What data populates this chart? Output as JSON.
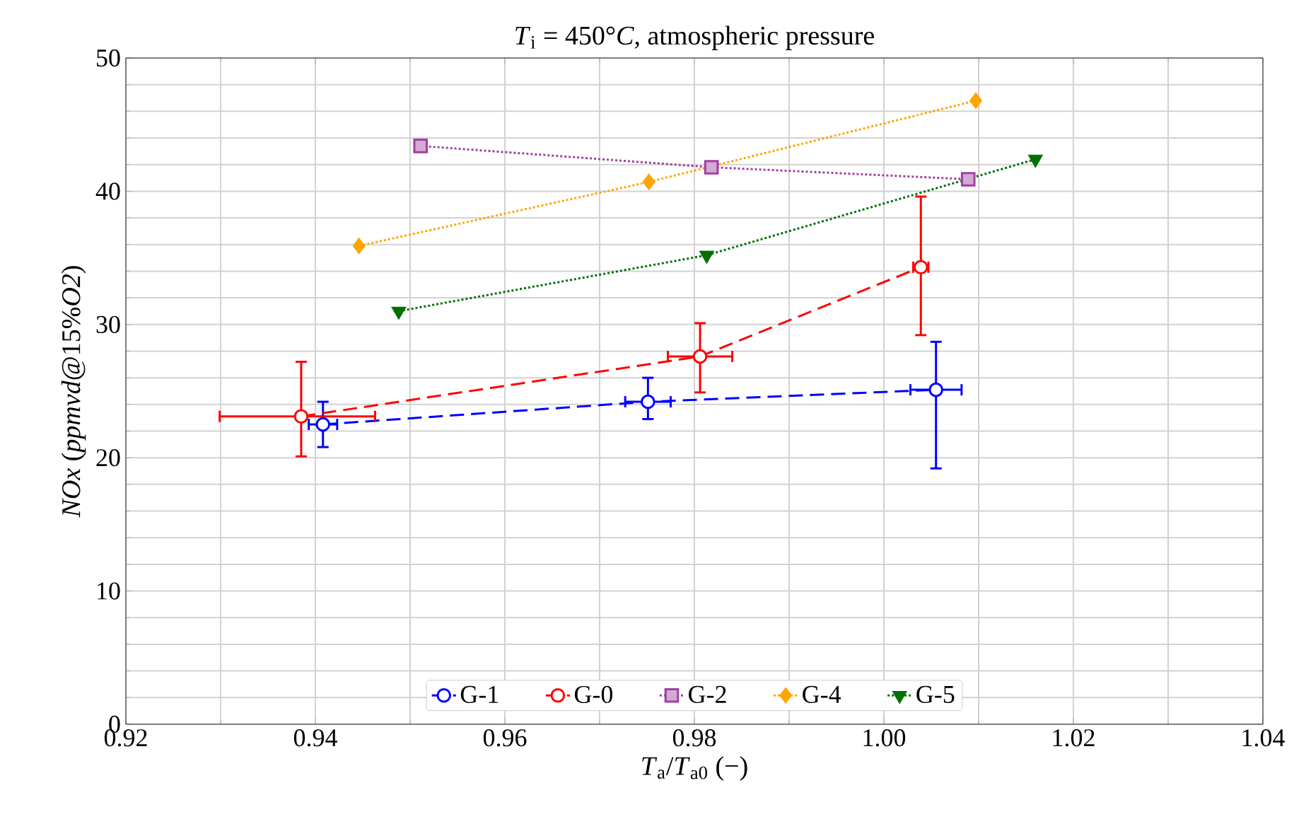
{
  "chart_data": {
    "type": "line",
    "title": "*T*$_{i}$ = 450°*C*, atmospheric pressure",
    "xlabel": "*T*$_{a}$/*T*$_{a0}$ (−)",
    "ylabel": "*NOx*  (*ppmvd*@15%*O2*)",
    "xlim": [
      0.92,
      1.04
    ],
    "ylim": [
      0,
      50
    ],
    "xticks": [
      {
        "value": 0.92,
        "label": "0.92"
      },
      {
        "value": 0.94,
        "label": "0.94"
      },
      {
        "value": 0.96,
        "label": "0.96"
      },
      {
        "value": 0.98,
        "label": "0.98"
      },
      {
        "value": 1.0,
        "label": "1.00"
      },
      {
        "value": 1.02,
        "label": "1.02"
      },
      {
        "value": 1.04,
        "label": "1.04"
      }
    ],
    "yticks": [
      0,
      10,
      20,
      30,
      40,
      50
    ],
    "grid": true,
    "legend": "bottom",
    "series": [
      {
        "name": "G-1",
        "color": "#0000ff",
        "marker": "circle",
        "line_style": "dashed",
        "x": [
          0.9408,
          0.9751,
          1.0055
        ],
        "values": [
          22.5,
          24.2,
          25.1
        ],
        "errors": [
          [
            20.8,
            24.2
          ],
          [
            22.9,
            26.0
          ],
          [
            19.2,
            28.7
          ]
        ],
        "xerrors": [
          0.0015,
          0.0024,
          0.0027
        ]
      },
      {
        "name": "G-0",
        "color": "#ff0000",
        "marker": "circle",
        "line_style": "dashed",
        "x": [
          0.9385,
          0.9806,
          1.0039
        ],
        "values": [
          23.1,
          27.6,
          34.3
        ],
        "errors": [
          [
            20.1,
            27.2
          ],
          [
            24.9,
            30.1
          ],
          [
            29.2,
            39.6
          ]
        ],
        "xerrors": [
          [
            0.9299,
            0.9463
          ],
          0.0034,
          0.0008
        ]
      },
      {
        "name": "G-2",
        "color": "#a040a0",
        "marker": "square",
        "line_style": "dotted",
        "x": [
          0.9511,
          0.9818,
          1.0089
        ],
        "values": [
          43.4,
          41.8,
          40.9
        ]
      },
      {
        "name": "G-4",
        "color": "#ffa500",
        "marker": "diamond",
        "line_style": "dotted",
        "x": [
          0.9446,
          0.9752,
          1.0097
        ],
        "values": [
          35.9,
          40.7,
          46.8
        ]
      },
      {
        "name": "G-5",
        "color": "#007000",
        "marker": "triangle",
        "line_style": "dotted",
        "x": [
          0.9488,
          0.9813,
          1.016
        ],
        "values": [
          31.0,
          35.2,
          42.4
        ]
      }
    ]
  }
}
